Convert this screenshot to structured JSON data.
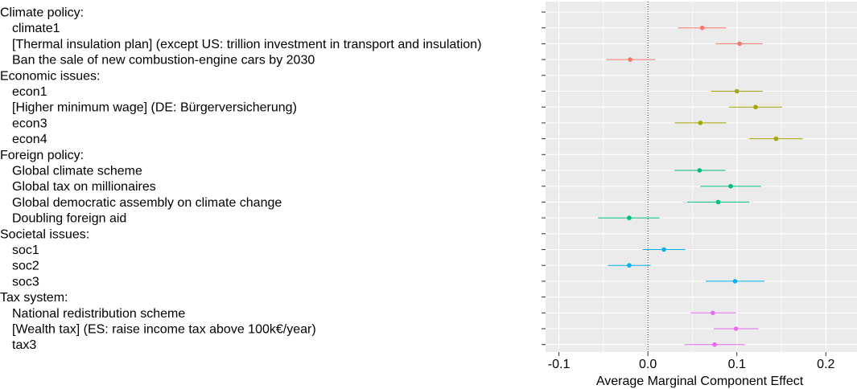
{
  "chart_data": {
    "type": "scatter",
    "xlabel": "Average Marginal Component Effect",
    "xlim": [
      -0.115,
      0.235
    ],
    "x_ticks": [
      {
        "value": -0.1,
        "label": "-0.1"
      },
      {
        "value": 0.0,
        "label": "0.0"
      },
      {
        "value": 0.1,
        "label": "0.1"
      },
      {
        "value": 0.2,
        "label": "0.2"
      }
    ],
    "reference_line": 0,
    "grid": true,
    "rows": [
      {
        "label": "Climate policy:",
        "header": true
      },
      {
        "label": "climate1",
        "estimate": 0.061,
        "lower": 0.034,
        "upper": 0.088,
        "color": "#F8766D"
      },
      {
        "label": "[Thermal insulation plan] (except US: trillion investment in transport and insulation)",
        "estimate": 0.103,
        "lower": 0.076,
        "upper": 0.129,
        "color": "#F8766D"
      },
      {
        "label": "Ban the sale of new combustion-engine cars by 2030",
        "estimate": -0.02,
        "lower": -0.047,
        "upper": 0.008,
        "color": "#F8766D"
      },
      {
        "label": "Economic issues:",
        "header": true
      },
      {
        "label": "econ1",
        "estimate": 0.1,
        "lower": 0.071,
        "upper": 0.129,
        "color": "#A3A500"
      },
      {
        "label": "[Higher minimum wage] (DE: Bürgerversicherung)",
        "estimate": 0.121,
        "lower": 0.091,
        "upper": 0.151,
        "color": "#A3A500"
      },
      {
        "label": "econ3",
        "estimate": 0.059,
        "lower": 0.03,
        "upper": 0.088,
        "color": "#A3A500"
      },
      {
        "label": "econ4",
        "estimate": 0.144,
        "lower": 0.114,
        "upper": 0.174,
        "color": "#A3A500"
      },
      {
        "label": "Foreign policy:",
        "header": true
      },
      {
        "label": "Global climate scheme",
        "estimate": 0.058,
        "lower": 0.03,
        "upper": 0.087,
        "color": "#00BF7D"
      },
      {
        "label": "Global tax on millionaires",
        "estimate": 0.093,
        "lower": 0.059,
        "upper": 0.127,
        "color": "#00BF7D"
      },
      {
        "label": "Global democratic assembly on climate change",
        "estimate": 0.079,
        "lower": 0.044,
        "upper": 0.114,
        "color": "#00BF7D"
      },
      {
        "label": "Doubling foreign aid",
        "estimate": -0.021,
        "lower": -0.056,
        "upper": 0.013,
        "color": "#00BF7D"
      },
      {
        "label": "Societal issues:",
        "header": true
      },
      {
        "label": "soc1",
        "estimate": 0.018,
        "lower": -0.006,
        "upper": 0.042,
        "color": "#00B0F6"
      },
      {
        "label": "soc2",
        "estimate": -0.021,
        "lower": -0.045,
        "upper": 0.003,
        "color": "#00B0F6"
      },
      {
        "label": "soc3",
        "estimate": 0.098,
        "lower": 0.065,
        "upper": 0.131,
        "color": "#00B0F6"
      },
      {
        "label": "Tax system:",
        "header": true
      },
      {
        "label": "National redistribution scheme",
        "estimate": 0.073,
        "lower": 0.048,
        "upper": 0.099,
        "color": "#E76BF3"
      },
      {
        "label": "[Wealth tax] (ES: raise income tax above 100k€/year)",
        "estimate": 0.099,
        "lower": 0.074,
        "upper": 0.124,
        "color": "#E76BF3"
      },
      {
        "label": "tax3",
        "estimate": 0.075,
        "lower": 0.041,
        "upper": 0.109,
        "color": "#E76BF3"
      }
    ]
  },
  "colors": {
    "panel_background": "#EBEBEB",
    "grid": "#FFFFFF",
    "tick_mark": "#333333"
  }
}
